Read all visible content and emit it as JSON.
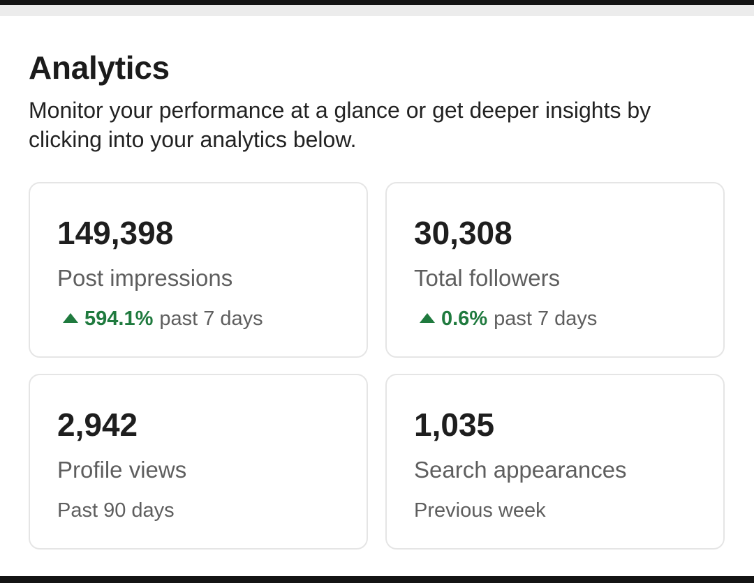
{
  "header": {
    "title": "Analytics",
    "subtitle": "Monitor your performance at a glance or get deeper insights by clicking into your analytics below."
  },
  "cards": [
    {
      "value": "149,398",
      "label": "Post impressions",
      "trend": {
        "direction": "up",
        "icon": "triangle-up-icon",
        "value": "594.1%",
        "period": "past 7 days"
      }
    },
    {
      "value": "30,308",
      "label": "Total followers",
      "trend": {
        "direction": "up",
        "icon": "triangle-up-icon",
        "value": "0.6%",
        "period": "past 7 days"
      }
    },
    {
      "value": "2,942",
      "label": "Profile views",
      "period": "Past 90 days"
    },
    {
      "value": "1,035",
      "label": "Search appearances",
      "period": "Previous week"
    }
  ],
  "colors": {
    "positive_trend": "#1f7a3e",
    "card_border": "#e5e5e5",
    "primary_text": "#1e1e1e",
    "secondary_text": "#5e5e5e"
  }
}
